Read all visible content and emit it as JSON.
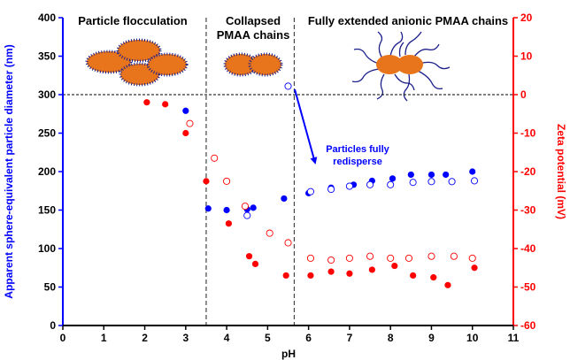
{
  "chart_data": {
    "type": "scatter",
    "xlabel": "pH",
    "ylabel_left": "Apparent sphere-equivalent particle diameter (nm)",
    "ylabel_right": "Zeta potential (mV)",
    "xlim": [
      0,
      11
    ],
    "ylim_left": [
      0,
      400
    ],
    "ylim_right": [
      -60,
      20
    ],
    "x_ticks": [
      "0",
      "1",
      "2",
      "3",
      "4",
      "5",
      "6",
      "7",
      "8",
      "9",
      "10",
      "11"
    ],
    "y_left_ticks": [
      "0",
      "50",
      "100",
      "150",
      "200",
      "250",
      "300",
      "350",
      "400"
    ],
    "y_right_ticks": [
      "-60",
      "-50",
      "-40",
      "-30",
      "-20",
      "-10",
      "0",
      "10",
      "20"
    ],
    "grid": false,
    "colors": {
      "diameter": "#0000ff",
      "zeta": "#ff0000",
      "left_axis": "#0000ff",
      "right_axis": "#ff0000"
    },
    "series": [
      {
        "axis": "left",
        "marker": "filled",
        "color": "#0000ff",
        "x": [
          3.0,
          3.55,
          4.0,
          4.5,
          4.65,
          5.4,
          6.0,
          6.55,
          7.1,
          7.55,
          8.05,
          8.5,
          9.0,
          9.35,
          10.0
        ],
        "y": [
          279,
          152,
          150,
          151,
          153,
          165,
          172,
          179,
          183,
          188,
          191,
          196,
          196,
          196,
          200
        ]
      },
      {
        "axis": "left",
        "marker": "open",
        "color": "#0000ff",
        "x": [
          4.5,
          5.5,
          6.05,
          6.55,
          7.0,
          7.5,
          8.0,
          8.55,
          9.0,
          9.5,
          10.05
        ],
        "y": [
          143,
          311,
          174,
          177,
          181,
          183,
          183,
          186,
          187,
          187,
          188
        ]
      },
      {
        "axis": "right",
        "marker": "filled",
        "color": "#ff0000",
        "x": [
          2.05,
          2.5,
          3.0,
          3.5,
          4.05,
          4.55,
          4.7,
          5.45,
          6.05,
          6.55,
          7.0,
          7.55,
          8.1,
          8.55,
          9.05,
          9.4,
          10.05
        ],
        "y": [
          -2,
          -2.5,
          -10,
          -22.5,
          -33.5,
          -42,
          -44,
          -47,
          -47,
          -46,
          -46.5,
          -45.5,
          -44.5,
          -47,
          -47.5,
          -49.5,
          -45
        ]
      },
      {
        "axis": "right",
        "marker": "open",
        "color": "#ff0000",
        "x": [
          3.1,
          3.7,
          4.0,
          4.45,
          5.05,
          5.5,
          6.05,
          6.55,
          7.0,
          7.5,
          8.0,
          8.45,
          9.0,
          9.55,
          10.0
        ],
        "y": [
          -7.5,
          -16.5,
          -22.5,
          -29,
          -36,
          -38.5,
          -42.5,
          -43,
          -42.5,
          -42,
          -42.5,
          -42.5,
          -42,
          -42,
          -42.5
        ]
      }
    ],
    "region_labels": [
      "Particle flocculation",
      "Collapsed",
      "PMAA chains",
      "Fully extended anionic PMAA chains"
    ],
    "annotation": [
      "Particles fully",
      "redisperse"
    ],
    "vertical_lines_x": [
      3.5,
      5.65
    ],
    "reference_line": {
      "axis": "right",
      "y": 0
    }
  }
}
